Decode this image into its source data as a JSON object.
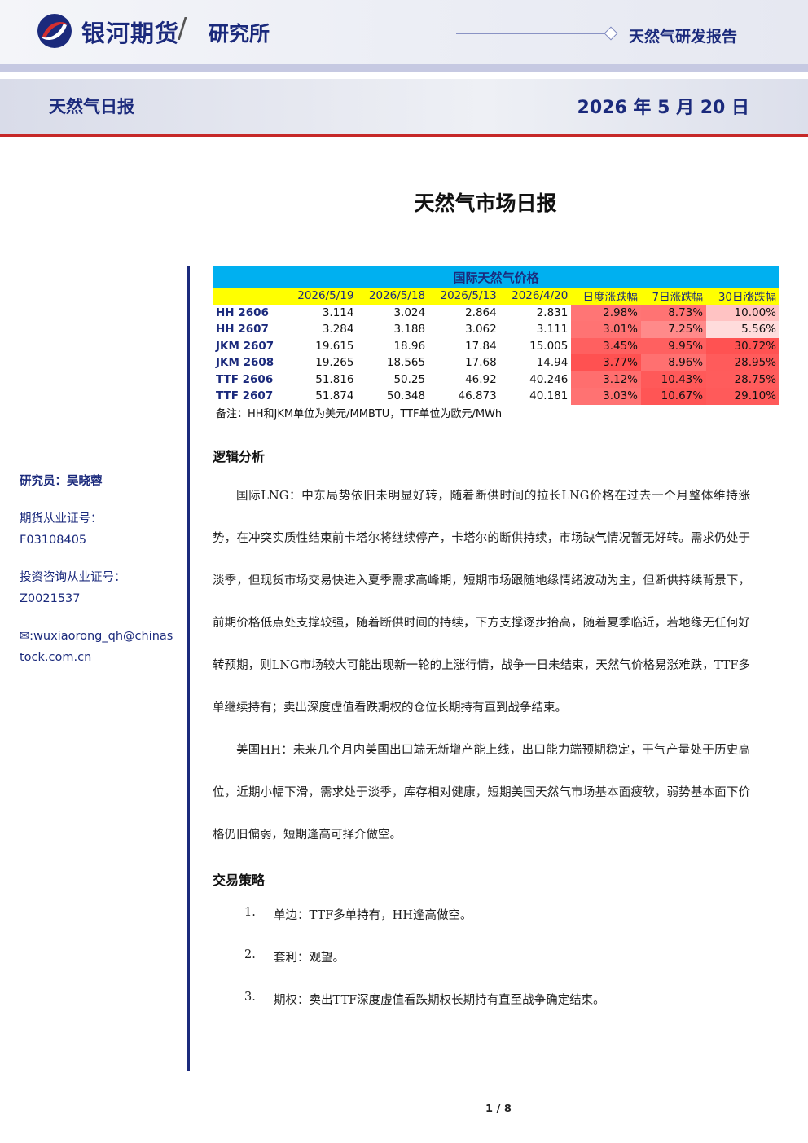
{
  "header": {
    "brand": "银河期货",
    "slash": "/",
    "dept": "研究所",
    "report_type": "天然气研发报告",
    "subtitle": "天然气日报",
    "date": "2026 年 5 月 20 日"
  },
  "title": "天然气市场日报",
  "sidebar": {
    "researcher": "研究员：吴晓蓉",
    "license_label": "期货从业证号：",
    "license_no": "F03108405",
    "advisory_label": "投资咨询从业证号：",
    "advisory_no": "Z0021537",
    "email_line1": "✉:wuxiaorong_qh@chinas",
    "email_line2": "tock.com.cn"
  },
  "table": {
    "caption": "国际天然气价格",
    "headers": [
      "",
      "2026/5/19",
      "2026/5/18",
      "2026/5/13",
      "2026/4/20",
      "日度涨跌幅",
      "7日涨跌幅",
      "30日涨跌幅"
    ],
    "rows": [
      {
        "name": "HH 2606",
        "v": [
          "3.114",
          "3.024",
          "2.864",
          "2.831"
        ],
        "chg": [
          "2.98%",
          "8.73%",
          "10.00%"
        ]
      },
      {
        "name": "HH 2607",
        "v": [
          "3.284",
          "3.188",
          "3.062",
          "3.111"
        ],
        "chg": [
          "3.01%",
          "7.25%",
          "5.56%"
        ]
      },
      {
        "name": "JKM 2607",
        "v": [
          "19.615",
          "18.96",
          "17.84",
          "15.005"
        ],
        "chg": [
          "3.45%",
          "9.95%",
          "30.72%"
        ]
      },
      {
        "name": "JKM 2608",
        "v": [
          "19.265",
          "18.565",
          "17.68",
          "14.94"
        ],
        "chg": [
          "3.77%",
          "8.96%",
          "28.95%"
        ]
      },
      {
        "name": "TTF 2606",
        "v": [
          "51.816",
          "50.25",
          "46.92",
          "40.246"
        ],
        "chg": [
          "3.12%",
          "10.43%",
          "28.75%"
        ]
      },
      {
        "name": "TTF 2607",
        "v": [
          "51.874",
          "50.348",
          "46.873",
          "40.181"
        ],
        "chg": [
          "3.03%",
          "10.67%",
          "29.10%"
        ]
      }
    ],
    "note": "备注：HH和JKM单位为美元/MMBTU，TTF单位为欧元/MWh"
  },
  "sections": {
    "logic_heading": "逻辑分析",
    "para1": "国际LNG：中东局势依旧未明显好转，随着断供时间的拉长LNG价格在过去一个月整体维持涨势，在冲突实质性结束前卡塔尔将继续停产，卡塔尔的断供持续，市场缺气情况暂无好转。需求仍处于淡季，但现货市场交易快进入夏季需求高峰期，短期市场跟随地缘情绪波动为主，但断供持续背景下，前期价格低点处支撑较强，随着断供时间的持续，下方支撑逐步抬高，随着夏季临近，若地缘无任何好转预期，则LNG市场较大可能出现新一轮的上涨行情，战争一日未结束，天然气价格易涨难跌，TTF多单继续持有；卖出深度虚值看跌期权的仓位长期持有直到战争结束。",
    "para2": "美国HH：未来几个月内美国出口端无新增产能上线，出口能力端预期稳定，干气产量处于历史高位，近期小幅下滑，需求处于淡季，库存相对健康，短期美国天然气市场基本面疲软，弱势基本面下价格仍旧偏弱，短期逢高可择介做空。",
    "strategy_heading": "交易策略",
    "strategies": [
      {
        "n": "1.",
        "text": "单边：TTF多单持有，HH逢高做空。"
      },
      {
        "n": "2.",
        "text": "套利：观望。"
      },
      {
        "n": "3.",
        "text": "期权：卖出TTF深度虚值看跌期权长期持有直至战争确定结束。"
      }
    ]
  },
  "footer": {
    "page": "1 / 8"
  },
  "colors": {
    "brand_blue": "#1b2a7c",
    "accent_red": "#c62828",
    "table_cap": "#00b0f0",
    "table_header": "#ffff00"
  }
}
